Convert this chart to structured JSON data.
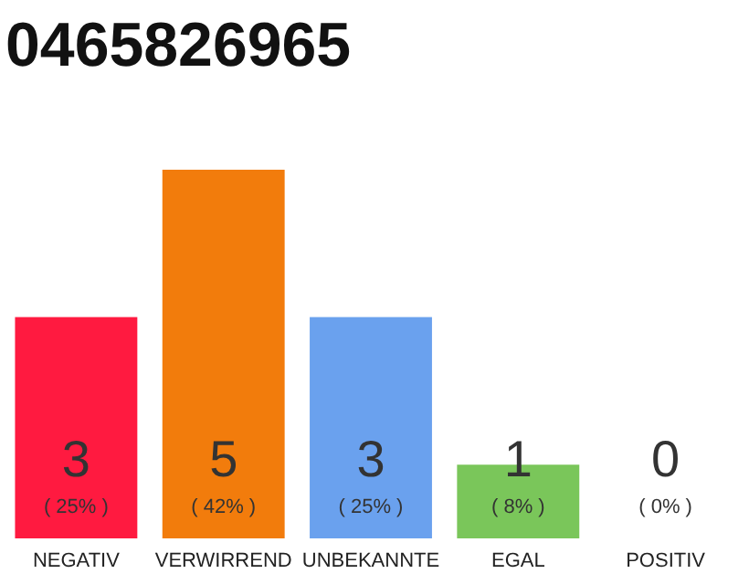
{
  "chart_data": {
    "type": "bar",
    "title": "0465826965",
    "categories": [
      "NEGATIV",
      "VERWIRREND",
      "UNBEKANNTE",
      "EGAL",
      "POSITIV"
    ],
    "values": [
      3,
      5,
      3,
      1,
      0
    ],
    "colors": [
      "#ff1a40",
      "#f27c0c",
      "#6aa1ee",
      "#7ac65a",
      "#d9d9d9"
    ],
    "data_labels": true,
    "tick_labels": "x",
    "annotations": [
      {
        "text": "( 25% )",
        "x": "NEGATIV",
        "y": 0
      },
      {
        "text": "( 42% )",
        "x": "VERWIRREND",
        "y": 0
      },
      {
        "text": "( 25% )",
        "x": "UNBEKANNTE",
        "y": 0
      },
      {
        "text": "( 8% )",
        "x": "EGAL",
        "y": 0
      },
      {
        "text": "( 0% )",
        "x": "POSITIV",
        "y": 0
      }
    ]
  }
}
